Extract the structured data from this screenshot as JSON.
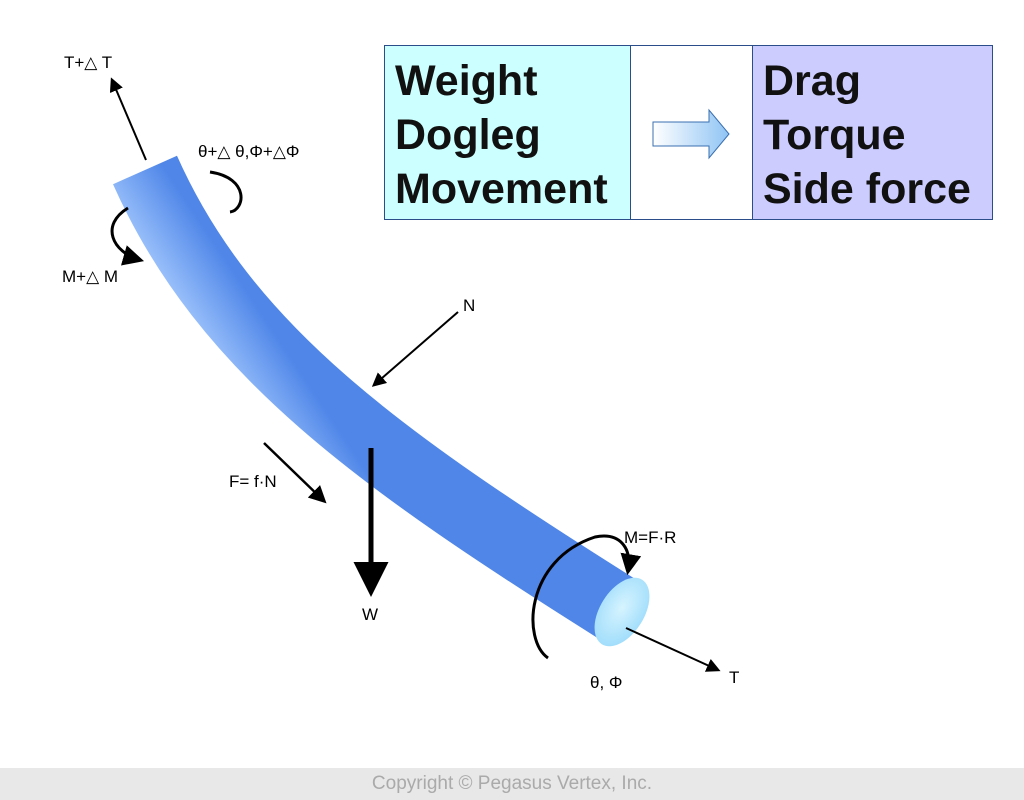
{
  "diagram": {
    "labels": {
      "t_top": "T+△ T",
      "angles_top": "θ+△ θ,Φ+△Φ",
      "m_top": "M+△ M",
      "normal": "N",
      "friction": "F= f·N",
      "weight": "W",
      "m_bottom": "M=F·R",
      "t_bottom": "T",
      "angles_bottom": "θ, Φ"
    }
  },
  "table": {
    "inputs": [
      "Weight",
      "Dogleg",
      "Movement"
    ],
    "outputs": [
      "Drag",
      "Torque",
      "Side force"
    ]
  },
  "footer": {
    "copyright": "Copyright © Pegasus Vertex, Inc."
  }
}
